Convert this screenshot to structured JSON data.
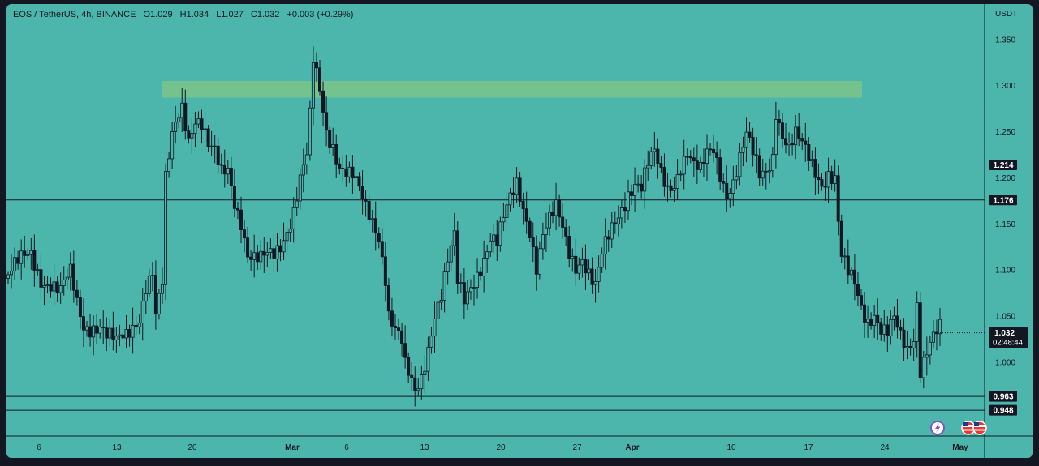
{
  "header": {
    "symbol": "EOS / TetherUS, 4h, BINANCE",
    "open": "O1.029",
    "high": "H1.034",
    "low": "L1.027",
    "close": "C1.032",
    "change": "+0.003 (+0.29%)"
  },
  "currency": "USDT",
  "countdown": "02:48:44",
  "chart_data": {
    "type": "candlestick",
    "y_ticks": [
      "1.350",
      "1.300",
      "1.250",
      "1.200",
      "1.150",
      "1.100",
      "1.050",
      "1.000"
    ],
    "y_tick_values": [
      1.35,
      1.3,
      1.25,
      1.2,
      1.15,
      1.1,
      1.05,
      1.0
    ],
    "x_ticks": [
      "6",
      "13",
      "20",
      "Mar",
      "6",
      "13",
      "20",
      "27",
      "Apr",
      "10",
      "17",
      "24",
      "May"
    ],
    "ylim": [
      0.92,
      1.385
    ],
    "levels": [
      {
        "value": 1.214,
        "label": "1.214"
      },
      {
        "value": 1.176,
        "label": "1.176"
      },
      {
        "value": 0.963,
        "label": "0.963"
      },
      {
        "value": 0.948,
        "label": "0.948"
      }
    ],
    "resistance_zone": [
      1.287,
      1.305
    ],
    "last_price": {
      "value": 1.032,
      "label": "1.032"
    },
    "close_path": [
      [
        0,
        1.095
      ],
      [
        4,
        1.105
      ],
      [
        7,
        1.115
      ],
      [
        10,
        1.095
      ],
      [
        13,
        1.09
      ],
      [
        16,
        1.075
      ],
      [
        19,
        1.09
      ],
      [
        21,
        1.06
      ],
      [
        23,
        1.04
      ],
      [
        26,
        1.045
      ],
      [
        28,
        1.045
      ],
      [
        30,
        1.03
      ],
      [
        32,
        1.02
      ],
      [
        33,
        1.015
      ],
      [
        36,
        1.025
      ],
      [
        38,
        1.04
      ],
      [
        40,
        1.055
      ],
      [
        42,
        1.09
      ],
      [
        44,
        1.1
      ],
      [
        45,
        1.05
      ],
      [
        47,
        1.08
      ],
      [
        48,
        1.19
      ],
      [
        50,
        1.24
      ],
      [
        52,
        1.27
      ],
      [
        53,
        1.28
      ],
      [
        55,
        1.25
      ],
      [
        57,
        1.27
      ],
      [
        59,
        1.26
      ],
      [
        61,
        1.23
      ],
      [
        63,
        1.22
      ],
      [
        65,
        1.2
      ],
      [
        67,
        1.21
      ],
      [
        69,
        1.18
      ],
      [
        71,
        1.16
      ],
      [
        73,
        1.12
      ],
      [
        75,
        1.11
      ],
      [
        77,
        1.105
      ],
      [
        79,
        1.11
      ],
      [
        81,
        1.115
      ],
      [
        83,
        1.13
      ],
      [
        85,
        1.15
      ],
      [
        87,
        1.17
      ],
      [
        89,
        1.2
      ],
      [
        91,
        1.22
      ],
      [
        92,
        1.26
      ],
      [
        93,
        1.32
      ],
      [
        95,
        1.29
      ],
      [
        97,
        1.25
      ],
      [
        99,
        1.24
      ],
      [
        101,
        1.22
      ],
      [
        103,
        1.21
      ],
      [
        105,
        1.2
      ],
      [
        107,
        1.18
      ],
      [
        109,
        1.16
      ],
      [
        111,
        1.15
      ],
      [
        113,
        1.14
      ],
      [
        115,
        1.1
      ],
      [
        116,
        1.06
      ],
      [
        118,
        1.04
      ],
      [
        120,
        1.02
      ],
      [
        121,
        0.99
      ],
      [
        123,
        0.97
      ],
      [
        124,
        0.96
      ],
      [
        126,
        0.98
      ],
      [
        128,
        1.02
      ],
      [
        130,
        1.06
      ],
      [
        132,
        1.08
      ],
      [
        134,
        1.11
      ],
      [
        136,
        1.13
      ],
      [
        137,
        1.08
      ],
      [
        139,
        1.06
      ],
      [
        141,
        1.08
      ],
      [
        143,
        1.1
      ],
      [
        145,
        1.12
      ],
      [
        147,
        1.14
      ],
      [
        149,
        1.13
      ],
      [
        151,
        1.15
      ],
      [
        153,
        1.17
      ],
      [
        155,
        1.19
      ],
      [
        157,
        1.17
      ],
      [
        159,
        1.15
      ],
      [
        161,
        1.11
      ],
      [
        163,
        1.14
      ],
      [
        165,
        1.15
      ],
      [
        167,
        1.16
      ],
      [
        169,
        1.14
      ],
      [
        171,
        1.12
      ],
      [
        173,
        1.11
      ],
      [
        175,
        1.12
      ],
      [
        177,
        1.1
      ],
      [
        179,
        1.08
      ],
      [
        181,
        1.11
      ],
      [
        183,
        1.13
      ],
      [
        185,
        1.15
      ],
      [
        187,
        1.17
      ],
      [
        189,
        1.19
      ],
      [
        191,
        1.2
      ],
      [
        193,
        1.19
      ],
      [
        195,
        1.21
      ],
      [
        197,
        1.22
      ],
      [
        199,
        1.2
      ],
      [
        201,
        1.19
      ],
      [
        203,
        1.2
      ],
      [
        205,
        1.22
      ],
      [
        207,
        1.23
      ],
      [
        209,
        1.21
      ],
      [
        211,
        1.2
      ],
      [
        213,
        1.22
      ],
      [
        215,
        1.23
      ],
      [
        217,
        1.21
      ],
      [
        219,
        1.19
      ],
      [
        221,
        1.2
      ],
      [
        223,
        1.22
      ],
      [
        225,
        1.24
      ],
      [
        227,
        1.22
      ],
      [
        229,
        1.2
      ],
      [
        231,
        1.21
      ],
      [
        233,
        1.23
      ],
      [
        234,
        1.28
      ],
      [
        236,
        1.25
      ],
      [
        238,
        1.23
      ],
      [
        240,
        1.24
      ],
      [
        242,
        1.23
      ],
      [
        244,
        1.22
      ],
      [
        246,
        1.21
      ],
      [
        248,
        1.2
      ],
      [
        250,
        1.21
      ],
      [
        252,
        1.2
      ],
      [
        253,
        1.15
      ],
      [
        254,
        1.11
      ],
      [
        256,
        1.09
      ],
      [
        258,
        1.08
      ],
      [
        260,
        1.06
      ],
      [
        262,
        1.05
      ],
      [
        264,
        1.06
      ],
      [
        266,
        1.04
      ],
      [
        268,
        1.03
      ],
      [
        270,
        1.04
      ],
      [
        272,
        1.02
      ],
      [
        274,
        1.01
      ],
      [
        276,
        1.03
      ],
      [
        277,
        1.07
      ],
      [
        278,
        1.0
      ],
      [
        280,
        1.02
      ],
      [
        282,
        1.03
      ],
      [
        284,
        1.032
      ]
    ]
  }
}
